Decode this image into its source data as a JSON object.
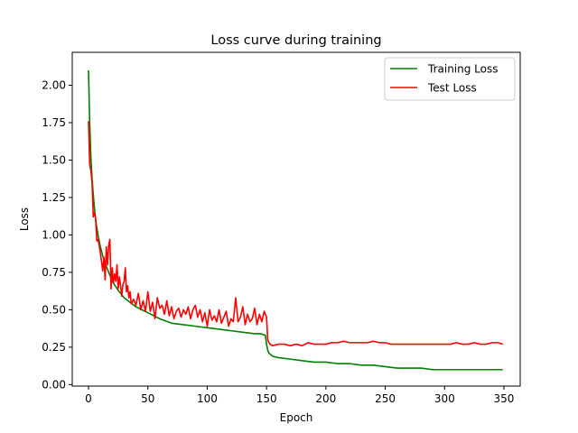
{
  "chart_data": {
    "type": "line",
    "title": "Loss curve during training",
    "xlabel": "Epoch",
    "ylabel": "Loss",
    "xlim": [
      -13.7,
      363.7
    ],
    "ylim": [
      -0.01,
      2.22
    ],
    "xticks": [
      0,
      50,
      100,
      150,
      200,
      250,
      300,
      350
    ],
    "xtick_labels": [
      "0",
      "50",
      "100",
      "150",
      "200",
      "250",
      "300",
      "350"
    ],
    "yticks": [
      0.0,
      0.25,
      0.5,
      0.75,
      1.0,
      1.25,
      1.5,
      1.75,
      2.0
    ],
    "ytick_labels": [
      "0.00",
      "0.25",
      "0.50",
      "0.75",
      "1.00",
      "1.25",
      "1.50",
      "1.75",
      "2.00"
    ],
    "grid": false,
    "legend_position": "top-right",
    "series": [
      {
        "name": "Training Loss",
        "color": "#008000",
        "x": [
          0,
          1,
          2,
          3,
          4,
          5,
          6,
          8,
          10,
          12,
          15,
          18,
          20,
          25,
          30,
          35,
          40,
          45,
          50,
          55,
          60,
          70,
          80,
          90,
          100,
          110,
          120,
          130,
          140,
          145,
          149,
          150,
          151,
          152,
          155,
          160,
          170,
          180,
          190,
          200,
          210,
          220,
          230,
          240,
          250,
          260,
          270,
          280,
          290,
          300,
          310,
          320,
          330,
          340,
          349
        ],
        "y": [
          2.1,
          1.75,
          1.52,
          1.38,
          1.27,
          1.18,
          1.1,
          1.0,
          0.92,
          0.86,
          0.79,
          0.73,
          0.69,
          0.63,
          0.58,
          0.55,
          0.52,
          0.5,
          0.48,
          0.46,
          0.44,
          0.41,
          0.4,
          0.39,
          0.38,
          0.37,
          0.36,
          0.35,
          0.34,
          0.34,
          0.33,
          0.27,
          0.23,
          0.21,
          0.19,
          0.18,
          0.17,
          0.16,
          0.15,
          0.15,
          0.14,
          0.14,
          0.13,
          0.13,
          0.12,
          0.11,
          0.11,
          0.11,
          0.1,
          0.1,
          0.1,
          0.1,
          0.1,
          0.1,
          0.1
        ]
      },
      {
        "name": "Test Loss",
        "color": "#ff0000",
        "x": [
          0,
          1,
          2,
          3,
          4,
          5,
          6,
          7,
          8,
          9,
          10,
          11,
          12,
          13,
          14,
          15,
          16,
          17,
          18,
          19,
          20,
          21,
          22,
          23,
          24,
          25,
          26,
          27,
          28,
          29,
          30,
          31,
          32,
          33,
          34,
          35,
          36,
          38,
          40,
          42,
          44,
          46,
          48,
          50,
          52,
          54,
          56,
          58,
          60,
          62,
          64,
          66,
          68,
          70,
          72,
          74,
          76,
          78,
          80,
          82,
          84,
          86,
          88,
          90,
          92,
          94,
          96,
          98,
          100,
          102,
          104,
          106,
          108,
          110,
          112,
          114,
          116,
          118,
          120,
          122,
          124,
          126,
          128,
          130,
          132,
          134,
          136,
          138,
          140,
          142,
          144,
          146,
          148,
          150,
          151,
          152,
          153,
          155,
          160,
          165,
          170,
          175,
          180,
          185,
          190,
          195,
          200,
          205,
          210,
          215,
          220,
          225,
          230,
          235,
          240,
          245,
          250,
          255,
          260,
          265,
          270,
          275,
          280,
          285,
          290,
          295,
          300,
          305,
          310,
          315,
          320,
          325,
          330,
          335,
          340,
          345,
          349
        ],
        "y": [
          1.76,
          1.47,
          1.43,
          1.35,
          1.12,
          1.15,
          1.11,
          0.96,
          0.97,
          0.93,
          0.88,
          0.82,
          0.76,
          0.85,
          0.7,
          0.92,
          0.8,
          0.93,
          0.97,
          0.64,
          0.78,
          0.68,
          0.74,
          0.69,
          0.8,
          0.64,
          0.72,
          0.66,
          0.59,
          0.67,
          0.69,
          0.78,
          0.62,
          0.66,
          0.58,
          0.62,
          0.54,
          0.57,
          0.53,
          0.61,
          0.5,
          0.56,
          0.49,
          0.62,
          0.49,
          0.55,
          0.44,
          0.58,
          0.51,
          0.53,
          0.47,
          0.56,
          0.46,
          0.52,
          0.44,
          0.49,
          0.51,
          0.45,
          0.5,
          0.47,
          0.52,
          0.44,
          0.5,
          0.53,
          0.45,
          0.5,
          0.42,
          0.48,
          0.39,
          0.5,
          0.43,
          0.46,
          0.42,
          0.5,
          0.41,
          0.45,
          0.49,
          0.39,
          0.44,
          0.42,
          0.58,
          0.42,
          0.45,
          0.52,
          0.4,
          0.47,
          0.42,
          0.44,
          0.51,
          0.4,
          0.47,
          0.42,
          0.49,
          0.45,
          0.3,
          0.28,
          0.27,
          0.26,
          0.27,
          0.27,
          0.26,
          0.27,
          0.26,
          0.28,
          0.27,
          0.27,
          0.27,
          0.28,
          0.28,
          0.29,
          0.28,
          0.28,
          0.28,
          0.28,
          0.29,
          0.28,
          0.28,
          0.27,
          0.27,
          0.27,
          0.27,
          0.27,
          0.27,
          0.27,
          0.27,
          0.27,
          0.27,
          0.27,
          0.28,
          0.27,
          0.27,
          0.28,
          0.27,
          0.27,
          0.28,
          0.28,
          0.27
        ]
      }
    ]
  }
}
